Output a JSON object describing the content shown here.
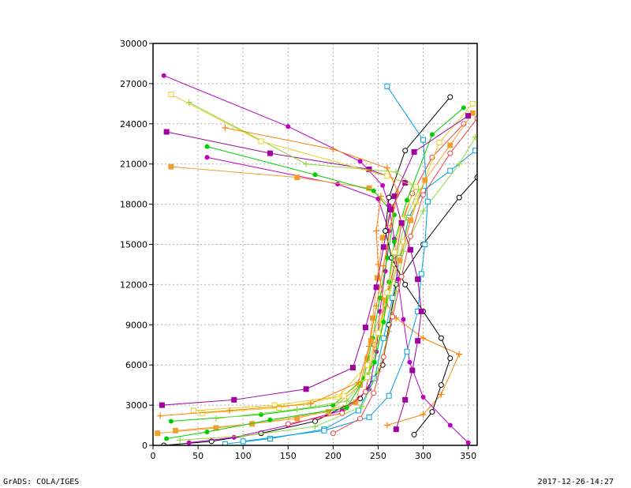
{
  "footer": {
    "left": "GrADS: COLA/IGES",
    "right": "2017-12-26-14:27"
  },
  "chart_data": {
    "type": "line",
    "title": "",
    "xlabel": "",
    "ylabel": "",
    "xlim": [
      0,
      360
    ],
    "ylim": [
      0,
      30000
    ],
    "x_ticks": [
      0,
      50,
      100,
      150,
      200,
      250,
      300,
      350
    ],
    "y_ticks": [
      0,
      3000,
      6000,
      9000,
      12000,
      15000,
      18000,
      21000,
      24000,
      27000,
      30000
    ],
    "x_tick_labels": [
      "0",
      "50",
      "100",
      "150",
      "200",
      "250",
      "300",
      "350"
    ],
    "y_tick_labels": [
      "0",
      "3000",
      "6000",
      "9000",
      "12000",
      "15000",
      "18000",
      "21000",
      "24000",
      "27000",
      "30000"
    ],
    "grid": true,
    "palette": [
      "#000000",
      "#c000c0",
      "#00a0e0",
      "#f0a030",
      "#90d840",
      "#f04040",
      "#00d000",
      "#e8d020",
      "#a000a0",
      "#ff8000"
    ],
    "series": [
      {
        "x": [
          12,
          65,
          120,
          180,
          230,
          255,
          262,
          270,
          300,
          340,
          360
        ],
        "y": [
          0,
          300,
          900,
          1800,
          3500,
          6000,
          9000,
          12000,
          15000,
          18500,
          20000
        ]
      },
      {
        "x": [
          40,
          90,
          150,
          210,
          240,
          248,
          252,
          258,
          262,
          250,
          205,
          60
        ],
        "y": [
          200,
          600,
          1500,
          2600,
          4200,
          7000,
          10000,
          13000,
          16000,
          18400,
          19500,
          21500
        ]
      },
      {
        "x": [
          80,
          130,
          190,
          228,
          246,
          256,
          266,
          274,
          284,
          300,
          330,
          358
        ],
        "y": [
          100,
          500,
          1200,
          2600,
          5000,
          8000,
          11000,
          14000,
          17000,
          19000,
          20500,
          22000
        ]
      },
      {
        "x": [
          5,
          70,
          160,
          225,
          238,
          244,
          249,
          255,
          265,
          240,
          160,
          20
        ],
        "y": [
          900,
          1300,
          2000,
          3200,
          6500,
          9500,
          12500,
          15500,
          17800,
          19200,
          20000,
          20800
        ]
      },
      {
        "x": [
          30,
          100,
          180,
          232,
          250,
          262,
          270,
          278,
          300,
          340,
          358
        ],
        "y": [
          400,
          700,
          1400,
          2900,
          5500,
          8500,
          11500,
          14500,
          17500,
          21000,
          23000
        ]
      },
      {
        "x": [
          150,
          210,
          236,
          246,
          258,
          268,
          276,
          288,
          310,
          345
        ],
        "y": [
          1600,
          2400,
          4000,
          7500,
          10500,
          13500,
          16500,
          18800,
          21500,
          24000
        ]
      },
      {
        "x": [
          20,
          120,
          200,
          234,
          244,
          252,
          260,
          268,
          245,
          180,
          60
        ],
        "y": [
          1800,
          2300,
          3000,
          5000,
          8000,
          11000,
          14000,
          17200,
          19000,
          20200,
          22300
        ]
      },
      {
        "x": [
          55,
          140,
          205,
          238,
          254,
          266,
          278,
          292,
          318,
          355
        ],
        "y": [
          2400,
          2800,
          3600,
          6000,
          9200,
          12200,
          15200,
          18200,
          22600,
          25500
        ]
      },
      {
        "x": [
          10,
          90,
          170,
          222,
          236,
          248,
          256,
          264,
          280,
          240,
          130,
          15
        ],
        "y": [
          3000,
          3400,
          4200,
          5800,
          8800,
          11800,
          14800,
          17600,
          19600,
          20600,
          21800,
          23400
        ]
      },
      {
        "x": [
          260,
          300,
          320,
          340,
          300,
          270,
          255,
          250,
          248,
          253
        ],
        "y": [
          1500,
          2300,
          3800,
          6800,
          8000,
          9500,
          11000,
          13500,
          16000,
          18600
        ]
      },
      {
        "x": [
          290,
          310,
          320,
          330,
          320,
          300,
          280,
          265,
          258,
          262,
          280,
          330
        ],
        "y": [
          800,
          2500,
          4500,
          6500,
          8000,
          10000,
          12000,
          14000,
          16000,
          18500,
          22000,
          26000
        ]
      },
      {
        "x": [
          350,
          330,
          300,
          285,
          278,
          272,
          268,
          262,
          255,
          230,
          150,
          12
        ],
        "y": [
          200,
          1500,
          3600,
          6200,
          9400,
          12400,
          15400,
          17900,
          19400,
          21200,
          23800,
          27600
        ]
      },
      {
        "x": [
          100,
          190,
          240,
          262,
          282,
          294,
          298,
          302,
          305,
          300,
          260
        ],
        "y": [
          300,
          1100,
          2100,
          3700,
          7000,
          10000,
          12800,
          15000,
          18200,
          22800,
          26800
        ]
      },
      {
        "x": [
          25,
          110,
          195,
          230,
          242,
          258,
          274,
          286,
          302,
          330,
          355
        ],
        "y": [
          1100,
          1600,
          2500,
          4500,
          7800,
          10800,
          13800,
          16800,
          19800,
          22400,
          24800
        ]
      },
      {
        "x": [
          70,
          160,
          215,
          240,
          252,
          262,
          271,
          281,
          295,
          270,
          170,
          40
        ],
        "y": [
          2000,
          2700,
          3300,
          5400,
          8200,
          11200,
          14200,
          17000,
          19100,
          20400,
          21000,
          25600
        ]
      },
      {
        "x": [
          200,
          230,
          245,
          256,
          266,
          276,
          286,
          300,
          330,
          360
        ],
        "y": [
          900,
          2000,
          3900,
          6600,
          9600,
          12600,
          15600,
          18700,
          21800,
          24400
        ]
      },
      {
        "x": [
          15,
          60,
          130,
          215,
          246,
          256,
          262,
          268,
          282,
          310,
          345
        ],
        "y": [
          500,
          1000,
          1900,
          2800,
          6200,
          9200,
          12200,
          15200,
          18300,
          23200,
          25200
        ]
      },
      {
        "x": [
          45,
          135,
          212,
          238,
          250,
          260,
          268,
          276,
          292,
          260,
          120,
          20
        ],
        "y": [
          2600,
          3000,
          3700,
          5100,
          8400,
          11400,
          14400,
          16900,
          19300,
          20100,
          22700,
          26200
        ]
      },
      {
        "x": [
          270,
          280,
          288,
          294,
          298,
          294,
          286,
          276,
          268,
          290,
          350
        ],
        "y": [
          1200,
          3400,
          5600,
          7800,
          10000,
          12400,
          14600,
          16600,
          18600,
          21900,
          24600
        ]
      },
      {
        "x": [
          8,
          85,
          175,
          228,
          240,
          248,
          256,
          264,
          272,
          260,
          200,
          80
        ],
        "y": [
          2200,
          2600,
          3100,
          4700,
          7400,
          10400,
          13400,
          16400,
          18900,
          20700,
          22100,
          23700
        ]
      }
    ]
  }
}
